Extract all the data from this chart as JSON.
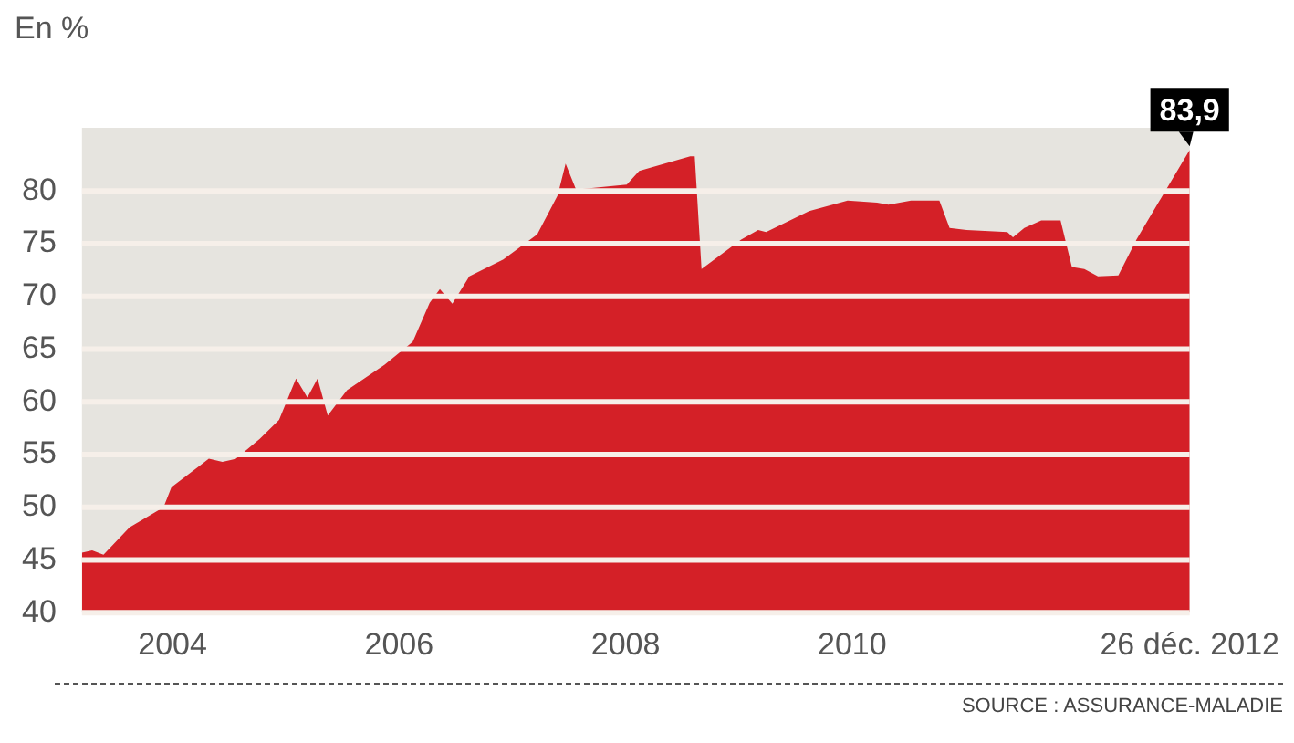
{
  "chart_data": {
    "type": "area",
    "ylabel": "En %",
    "x": [
      2003.2,
      2003.29,
      2003.39,
      2003.62,
      2003.92,
      2003.99,
      2004.32,
      2004.44,
      2004.56,
      2004.77,
      2004.94,
      2005.09,
      2005.19,
      2005.28,
      2005.37,
      2005.54,
      2005.87,
      2006.12,
      2006.27,
      2006.36,
      2006.47,
      2006.62,
      2006.92,
      2007.22,
      2007.4,
      2007.47,
      2007.56,
      2007.62,
      2008.01,
      2008.12,
      2008.57,
      2008.61,
      2008.67,
      2009.02,
      2009.17,
      2009.24,
      2009.62,
      2009.96,
      2010.22,
      2010.32,
      2010.52,
      2010.77,
      2010.86,
      2011.01,
      2011.37,
      2011.42,
      2011.52,
      2011.67,
      2011.84,
      2011.94,
      2012.05,
      2012.17,
      2012.35,
      2012.51,
      2012.98
    ],
    "series": [
      {
        "color": "#d42027",
        "values": [
          45.7,
          45.9,
          45.5,
          48.1,
          50,
          51.9,
          54.6,
          54.3,
          54.6,
          56.5,
          58.3,
          62.2,
          60.4,
          62.2,
          58.7,
          61.1,
          63.5,
          65.7,
          69.4,
          70.7,
          69.3,
          71.9,
          73.5,
          75.9,
          79.6,
          82.6,
          80.2,
          80.2,
          80.6,
          81.9,
          83.3,
          83.3,
          72.6,
          75.4,
          76.3,
          76.1,
          78.1,
          79.1,
          78.9,
          78.7,
          79.1,
          79.1,
          76.5,
          76.3,
          76.1,
          75.6,
          76.5,
          77.2,
          77.2,
          72.8,
          72.6,
          71.9,
          72,
          75.4,
          83.9
        ]
      }
    ],
    "xlim": [
      2003.2,
      2012.98
    ],
    "xticks": [
      2004,
      2006,
      2008,
      2010,
      {
        "value": 2012.98,
        "label": "26 déc. 2012"
      }
    ],
    "ylim": [
      40,
      86
    ],
    "yticks": [
      40,
      45,
      50,
      55,
      60,
      65,
      70,
      75,
      80
    ],
    "grid": "y",
    "legend": false,
    "annotations": [
      {
        "text": "83,9",
        "x": 2012.98,
        "y": 83.9
      },
      "SOURCE : ASSURANCE-MALADIE"
    ]
  }
}
